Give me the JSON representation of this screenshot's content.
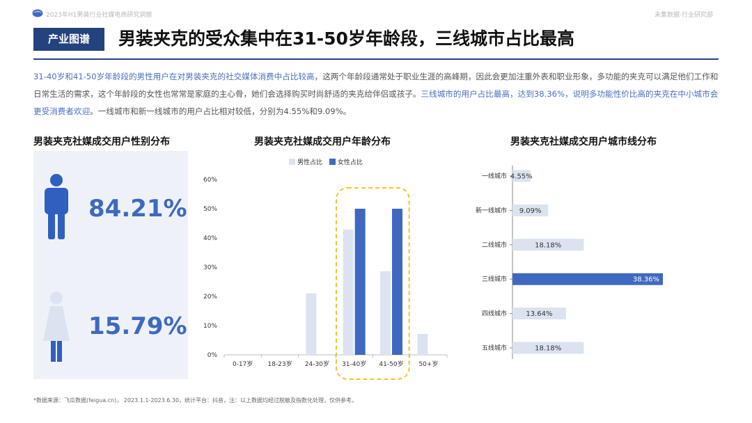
{
  "header": {
    "report_title": "2023年H1男装行业社媒电商研究洞察",
    "brand": "未集数据·行业研究部",
    "tag": "产业图谱",
    "headline": "男装夹克的受众集中在31-50岁年龄段，三线城市占比最高"
  },
  "summary": {
    "part1_highlight": "31-40岁和41-50岁年龄段的男性用户在对男装夹克的社交媒体消费中占比较高",
    "part2": "，这两个年龄段通常处于职业生涯的高峰期，因此会更加注重外表和职业形象，多功能的夹克可以满足他们工作和日常生活的需求，这个年龄段的女性也常常是家庭的主心骨，她们会选择购买时尚舒适的夹克给伴侣或孩子。",
    "part3_highlight": "三线城市的用户占比最高，达到38.36%，说明多功能性价比高的夹克在中小城市会更受消费者欢迎",
    "part4": "。一线城市和新一线城市的用户占比相对较低，分别为4.55%和9.09%。"
  },
  "gender": {
    "title": "男装夹克社媒成交用户性别分布",
    "male_pct": "84.21%",
    "female_pct": "15.79%",
    "male_color": "#2f5fbf",
    "female_color": "#dbe3f1",
    "icons": [
      "man-icon",
      "woman-icon"
    ]
  },
  "colors": {
    "accent": "#24427e",
    "male_bar": "#dbe3f1",
    "female_bar": "#3f69c0",
    "highlight_box": "#f2c230",
    "city_bar": "#dbe3f1",
    "city_bar_highlight": "#3f69c0"
  },
  "chart_data": [
    {
      "type": "bar",
      "title": "男装夹克社媒成交用户年龄分布",
      "categories": [
        "0-17岁",
        "18-23岁",
        "24-30岁",
        "31-40岁",
        "41-50岁",
        "50+岁"
      ],
      "series": [
        {
          "name": "男性占比",
          "values": [
            0,
            0,
            21.05,
            42.86,
            28.57,
            7.14
          ]
        },
        {
          "name": "女性占比",
          "values": [
            0,
            0,
            0,
            50,
            50,
            0
          ]
        }
      ],
      "ylim": [
        0,
        60
      ],
      "yticks": [
        "0%",
        "10%",
        "20%",
        "30%",
        "40%",
        "50%",
        "60%"
      ],
      "highlight_categories": [
        "31-40岁",
        "41-50岁"
      ],
      "legend": "top"
    },
    {
      "type": "bar",
      "orientation": "horizontal",
      "title": "男装夹克社媒成交用户城市线分布",
      "categories": [
        "一线城市",
        "新一线城市",
        "二线城市",
        "三线城市",
        "四线城市",
        "五线城市"
      ],
      "values": [
        4.55,
        9.09,
        18.18,
        38.36,
        13.64,
        18.18
      ],
      "labels": [
        "4.55%",
        "9.09%",
        "18.18%",
        "38.36%",
        "13.64%",
        "18.18%"
      ],
      "highlight_category": "三线城市"
    }
  ],
  "footnote": "*数据来源：飞瓜数据(feigua.cn)， 2023.1.1-2023.6.30，统计平台：抖音，注：以上数据均经过脱敏及指数化处理，仅供参考。"
}
